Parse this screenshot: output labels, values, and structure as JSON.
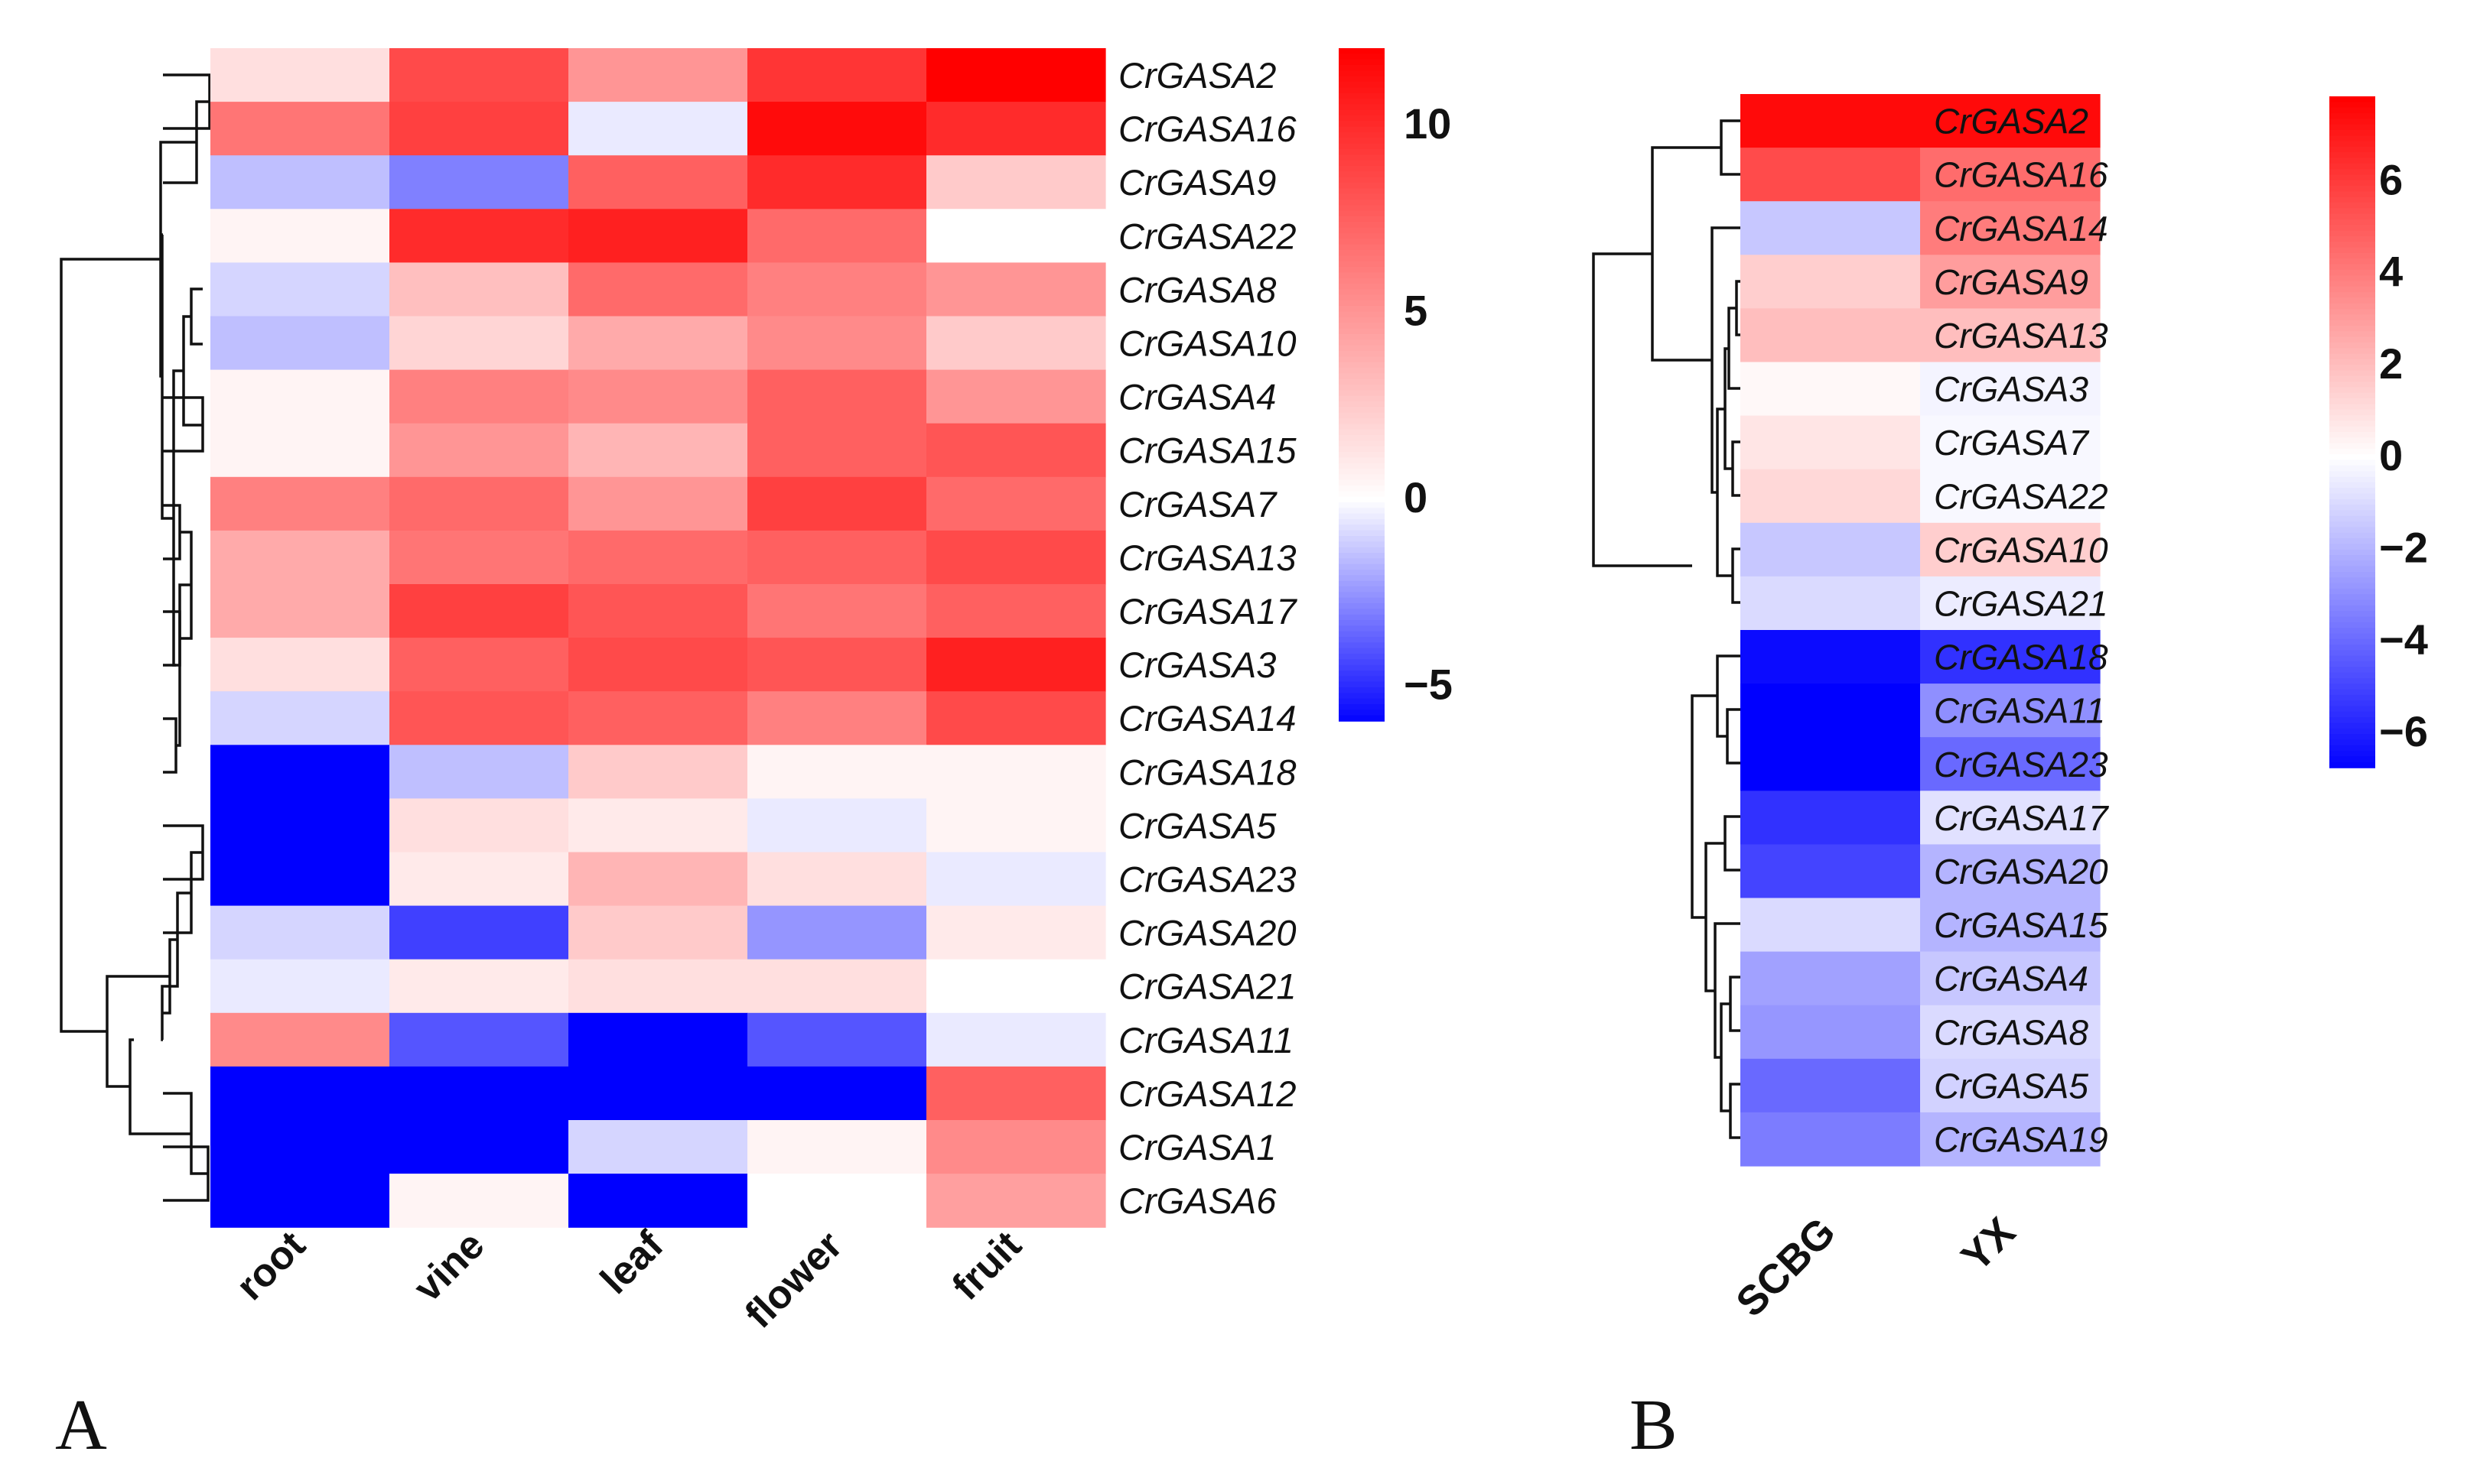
{
  "chart_data": [
    {
      "type": "heatmap",
      "panel_label": "A",
      "columns": [
        "root",
        "vine",
        "leaf",
        "flower",
        "fruit"
      ],
      "rows": [
        "CrGASA2",
        "CrGASA16",
        "CrGASA9",
        "CrGASA22",
        "CrGASA8",
        "CrGASA10",
        "CrGASA4",
        "CrGASA15",
        "CrGASA7",
        "CrGASA13",
        "CrGASA17",
        "CrGASA3",
        "CrGASA14",
        "CrGASA18",
        "CrGASA5",
        "CrGASA23",
        "CrGASA20",
        "CrGASA21",
        "CrGASA11",
        "CrGASA12",
        "CrGASA1",
        "CrGASA6"
      ],
      "values": [
        [
          1.5,
          8.5,
          5.0,
          9.5,
          12.0
        ],
        [
          6.5,
          9.0,
          -0.5,
          11.5,
          10.0
        ],
        [
          -1.5,
          -3.0,
          7.5,
          10.0,
          2.5
        ],
        [
          0.5,
          10.0,
          10.5,
          7.0,
          0.0
        ],
        [
          -1.0,
          3.0,
          7.0,
          6.0,
          5.0
        ],
        [
          -1.5,
          2.0,
          4.0,
          5.5,
          2.5
        ],
        [
          0.5,
          6.0,
          5.5,
          7.5,
          5.0
        ],
        [
          0.5,
          5.0,
          3.5,
          7.5,
          8.0
        ],
        [
          6.0,
          7.0,
          5.0,
          9.0,
          7.0
        ],
        [
          4.0,
          6.5,
          7.0,
          7.5,
          8.5
        ],
        [
          4.0,
          9.0,
          8.0,
          6.5,
          7.5
        ],
        [
          1.5,
          7.5,
          8.5,
          8.0,
          10.5
        ],
        [
          -1.0,
          8.0,
          7.5,
          6.0,
          8.5
        ],
        [
          -7.0,
          -1.5,
          2.5,
          0.5,
          0.5
        ],
        [
          -7.0,
          1.5,
          1.0,
          -0.5,
          0.5
        ],
        [
          -7.0,
          1.0,
          3.5,
          1.5,
          -0.5
        ],
        [
          -1.0,
          -4.5,
          2.5,
          -2.5,
          1.0
        ],
        [
          -0.5,
          1.0,
          1.5,
          1.5,
          0.0
        ],
        [
          5.5,
          -4.0,
          -7.0,
          -4.0,
          -0.5
        ],
        [
          -7.0,
          -7.0,
          -7.0,
          -7.0,
          7.5
        ],
        [
          -7.0,
          -7.0,
          -1.0,
          0.5,
          5.5
        ],
        [
          -7.0,
          0.5,
          -7.0,
          0.0,
          4.5
        ]
      ],
      "colorbar": {
        "min": -6,
        "max": 12,
        "ticks": [
          10,
          5,
          0,
          -5
        ],
        "tick_labels": [
          "10",
          "5",
          "0",
          "−5"
        ]
      },
      "colors": {
        "low": "#0000ff",
        "mid": "#ffffff",
        "high": "#ff0000"
      }
    },
    {
      "type": "heatmap",
      "panel_label": "B",
      "columns": [
        "SCBG",
        "YX"
      ],
      "rows": [
        "CrGASA2",
        "CrGASA16",
        "CrGASA14",
        "CrGASA9",
        "CrGASA13",
        "CrGASA3",
        "CrGASA7",
        "CrGASA22",
        "CrGASA10",
        "CrGASA21",
        "CrGASA18",
        "CrGASA11",
        "CrGASA23",
        "CrGASA17",
        "CrGASA20",
        "CrGASA15",
        "CrGASA4",
        "CrGASA8",
        "CrGASA5",
        "CrGASA19"
      ],
      "values": [
        [
          7.5,
          7.5
        ],
        [
          5.5,
          4.5
        ],
        [
          -1.5,
          4.0
        ],
        [
          1.5,
          3.0
        ],
        [
          2.0,
          2.0
        ],
        [
          0.2,
          -0.3
        ],
        [
          0.8,
          -0.2
        ],
        [
          1.2,
          -0.2
        ],
        [
          -1.5,
          1.5
        ],
        [
          -1.0,
          -0.5
        ],
        [
          -6.5,
          -5.5
        ],
        [
          -7.0,
          -3.0
        ],
        [
          -7.0,
          -4.0
        ],
        [
          -5.5,
          -0.8
        ],
        [
          -5.0,
          -2.0
        ],
        [
          -1.0,
          -2.0
        ],
        [
          -2.5,
          -1.5
        ],
        [
          -2.8,
          -1.0
        ],
        [
          -4.0,
          -1.2
        ],
        [
          -3.5,
          -2.0
        ]
      ],
      "colorbar": {
        "min": -6.8,
        "max": 7.8,
        "ticks": [
          6,
          4,
          2,
          0,
          -2,
          -4,
          -6
        ],
        "tick_labels": [
          "6",
          "4",
          "2",
          "0",
          "−2",
          "−4",
          "−6"
        ]
      },
      "colors": {
        "low": "#0000ff",
        "mid": "#ffffff",
        "high": "#ff0000"
      }
    }
  ]
}
